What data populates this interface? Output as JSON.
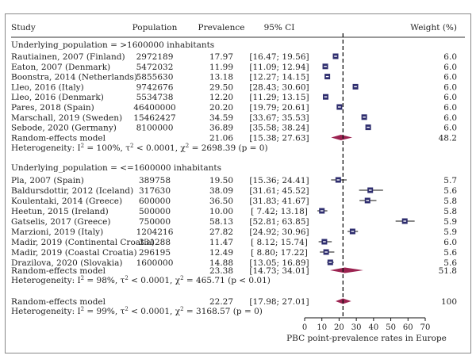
{
  "chart_data": {
    "type": "forest",
    "columns": [
      "Study",
      "Population",
      "Prevalence",
      "95% CI",
      "Weight (%)"
    ],
    "groups": [
      {
        "label": "Underlying_population = >1600000 inhabitants",
        "studies": [
          {
            "study": "Rautiainen, 2007 (Finland)",
            "population": "2972189",
            "prevalence": "17.97",
            "ci": "[16.47; 19.56]",
            "weight": "6.0",
            "est": 17.97,
            "lo": 16.47,
            "hi": 19.56
          },
          {
            "study": "Eaton, 2007 (Denmark)",
            "population": "5472032",
            "prevalence": "11.99",
            "ci": "[11.09; 12.94]",
            "weight": "6.0",
            "est": 11.99,
            "lo": 11.09,
            "hi": 12.94
          },
          {
            "study": "Boonstra, 2014 (Netherlands)",
            "population": "5855630",
            "prevalence": "13.18",
            "ci": "[12.27; 14.15]",
            "weight": "6.0",
            "est": 13.18,
            "lo": 12.27,
            "hi": 14.15
          },
          {
            "study": "Lleo, 2016 (Italy)",
            "population": "9742676",
            "prevalence": "29.50",
            "ci": "[28.43; 30.60]",
            "weight": "6.0",
            "est": 29.5,
            "lo": 28.43,
            "hi": 30.6
          },
          {
            "study": "Lleo, 2016 (Denmark)",
            "population": "5534738",
            "prevalence": "12.20",
            "ci": "[11.29; 13.15]",
            "weight": "6.0",
            "est": 12.2,
            "lo": 11.29,
            "hi": 13.15
          },
          {
            "study": "Pares, 2018 (Spain)",
            "population": "46400000",
            "prevalence": "20.20",
            "ci": "[19.79; 20.61]",
            "weight": "6.0",
            "est": 20.2,
            "lo": 19.79,
            "hi": 20.61
          },
          {
            "study": "Marschall, 2019 (Sweden)",
            "population": "15462427",
            "prevalence": "34.59",
            "ci": "[33.67; 35.53]",
            "weight": "6.0",
            "est": 34.59,
            "lo": 33.67,
            "hi": 35.53
          },
          {
            "study": "Sebode, 2020 (Germany)",
            "population": "8100000",
            "prevalence": "36.89",
            "ci": "[35.58; 38.24]",
            "weight": "6.0",
            "est": 36.89,
            "lo": 35.58,
            "hi": 38.24
          }
        ],
        "pooled": {
          "label": "Random-effects model",
          "prevalence": "21.06",
          "ci": "[15.38; 27.63]",
          "weight": "48.2",
          "est": 21.06,
          "lo": 15.38,
          "hi": 27.63
        },
        "heterogeneity": {
          "prefix": "Heterogeneity: ",
          "i2": "100%",
          "tau2": "< 0.0001",
          "chi2": "2698.39",
          "p": "(p = 0)"
        }
      },
      {
        "label": "Underlying_population = <=1600000 inhabitants",
        "studies": [
          {
            "study": "Pla, 2007 (Spain)",
            "population": "389758",
            "prevalence": "19.50",
            "ci": "[15.36; 24.41]",
            "weight": "5.7",
            "est": 19.5,
            "lo": 15.36,
            "hi": 24.41
          },
          {
            "study": "Baldursdottir, 2012 (Iceland)",
            "population": "317630",
            "prevalence": "38.09",
            "ci": "[31.61; 45.52]",
            "weight": "5.6",
            "est": 38.09,
            "lo": 31.61,
            "hi": 45.52
          },
          {
            "study": "Koulentaki, 2014 (Greece)",
            "population": "600000",
            "prevalence": "36.50",
            "ci": "[31.83; 41.67]",
            "weight": "5.8",
            "est": 36.5,
            "lo": 31.83,
            "hi": 41.67
          },
          {
            "study": "Heetun, 2015 (Ireland)",
            "population": "500000",
            "prevalence": "10.00",
            "ci": "[ 7.42; 13.18]",
            "weight": "5.8",
            "est": 10.0,
            "lo": 7.42,
            "hi": 13.18
          },
          {
            "study": "Gatselis, 2017 (Greece)",
            "population": "750000",
            "prevalence": "58.13",
            "ci": "[52.81; 63.85]",
            "weight": "5.9",
            "est": 58.13,
            "lo": 52.81,
            "hi": 63.85
          },
          {
            "study": "Marzioni, 2019 (Italy)",
            "population": "1204216",
            "prevalence": "27.82",
            "ci": "[24.92; 30.96]",
            "weight": "5.9",
            "est": 27.82,
            "lo": 24.92,
            "hi": 30.96
          },
          {
            "study": "Madir, 2019 (Continental Croatia)",
            "population": "331288",
            "prevalence": "11.47",
            "ci": "[ 8.12; 15.74]",
            "weight": "6.0",
            "est": 11.47,
            "lo": 8.12,
            "hi": 15.74
          },
          {
            "study": "Madir, 2019 (Coastal Croatia)",
            "population": "296195",
            "prevalence": "12.49",
            "ci": "[ 8.80; 17.22]",
            "weight": "5.6",
            "est": 12.49,
            "lo": 8.8,
            "hi": 17.22
          },
          {
            "study": "Drazilova, 2020 (Slovakia)",
            "population": "1600000",
            "prevalence": "14.88",
            "ci": "[13.05; 16.89]",
            "weight": "5.6",
            "est": 14.88,
            "lo": 13.05,
            "hi": 16.89
          }
        ],
        "pooled": {
          "label": "Random-effects model",
          "prevalence": "23.38",
          "ci": "[14.73; 34.01]",
          "weight": "51.8",
          "est": 23.38,
          "lo": 14.73,
          "hi": 34.01
        },
        "heterogeneity": {
          "prefix": "Heterogeneity: ",
          "i2": "98%",
          "tau2": "< 0.0001",
          "chi2": "465.71",
          "p": "(p < 0.01)"
        }
      }
    ],
    "overall": {
      "label": "Random-effects model",
      "prevalence": "22.27",
      "ci": "[17.98; 27.01]",
      "weight": "100",
      "est": 22.27,
      "lo": 17.98,
      "hi": 27.01,
      "heterogeneity": {
        "prefix": "Heterogeneity: ",
        "i2": "99%",
        "tau2": "< 0.0001",
        "chi2": "3168.57",
        "p": "(p = 0)"
      }
    },
    "xaxis": {
      "ticks": [
        0,
        10,
        20,
        30,
        40,
        50,
        60,
        70
      ],
      "range": [
        0,
        70
      ],
      "label": "PBC point-prevalence rates in Europe"
    },
    "reference_line": 22.27,
    "colors": {
      "marker": "#2e2d6e",
      "diamond": "#9b2250",
      "text": "#222222",
      "border": "#888888"
    }
  }
}
